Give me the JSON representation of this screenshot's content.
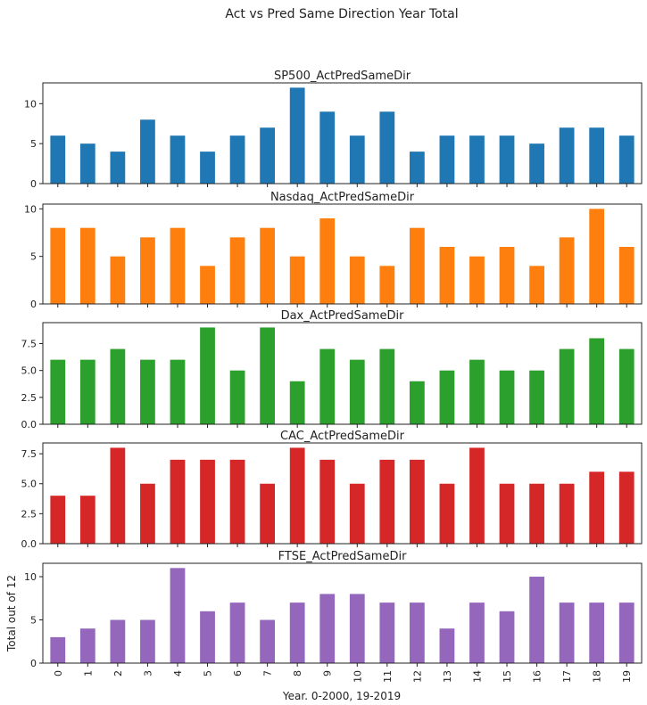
{
  "chart_data": {
    "type": "bar",
    "suptitle": "Act vs Pred Same Direction Year Total",
    "xlabel": "Year. 0-2000, 19-2019",
    "ylabel": "Total out of 12",
    "categories": [
      "0",
      "1",
      "2",
      "3",
      "4",
      "5",
      "6",
      "7",
      "8",
      "9",
      "10",
      "11",
      "12",
      "13",
      "14",
      "15",
      "16",
      "17",
      "18",
      "19"
    ],
    "subplots": [
      {
        "title": "SP500_ActPredSameDir",
        "color": "#1f77b4",
        "values": [
          6,
          5,
          4,
          8,
          6,
          4,
          6,
          7,
          12,
          9,
          6,
          9,
          4,
          6,
          6,
          6,
          5,
          7,
          7,
          6
        ],
        "ylim": [
          0,
          12.6
        ],
        "yticks": [
          0,
          5,
          10
        ],
        "yticklabels": [
          "0",
          "5",
          "10"
        ]
      },
      {
        "title": "Nasdaq_ActPredSameDir",
        "color": "#ff7f0e",
        "values": [
          8,
          8,
          5,
          7,
          8,
          4,
          7,
          8,
          5,
          9,
          5,
          4,
          8,
          6,
          5,
          6,
          4,
          7,
          10,
          6
        ],
        "ylim": [
          0,
          10.5
        ],
        "yticks": [
          0,
          5,
          10
        ],
        "yticklabels": [
          "0",
          "5",
          "10"
        ]
      },
      {
        "title": "Dax_ActPredSameDir",
        "color": "#2ca02c",
        "values": [
          6,
          6,
          7,
          6,
          6,
          9,
          5,
          9,
          4,
          7,
          6,
          7,
          4,
          5,
          6,
          5,
          5,
          7,
          8,
          7
        ],
        "ylim": [
          0,
          9.45
        ],
        "yticks": [
          0,
          2.5,
          5,
          7.5
        ],
        "yticklabels": [
          "0.0",
          "2.5",
          "5.0",
          "7.5"
        ]
      },
      {
        "title": "CAC_ActPredSameDir",
        "color": "#d62728",
        "values": [
          4,
          4,
          8,
          5,
          7,
          7,
          7,
          5,
          8,
          7,
          5,
          7,
          7,
          5,
          8,
          5,
          5,
          5,
          6,
          6
        ],
        "ylim": [
          0,
          8.4
        ],
        "yticks": [
          0,
          2.5,
          5,
          7.5
        ],
        "yticklabels": [
          "0.0",
          "2.5",
          "5.0",
          "7.5"
        ]
      },
      {
        "title": "FTSE_ActPredSameDir",
        "color": "#9467bd",
        "values": [
          3,
          4,
          5,
          5,
          11,
          6,
          7,
          5,
          7,
          8,
          8,
          7,
          7,
          4,
          7,
          6,
          10,
          7,
          7,
          7
        ],
        "ylim": [
          0,
          11.55
        ],
        "yticks": [
          0,
          5,
          10
        ],
        "yticklabels": [
          "0",
          "5",
          "10"
        ]
      }
    ],
    "grid": false,
    "legend": "none"
  }
}
